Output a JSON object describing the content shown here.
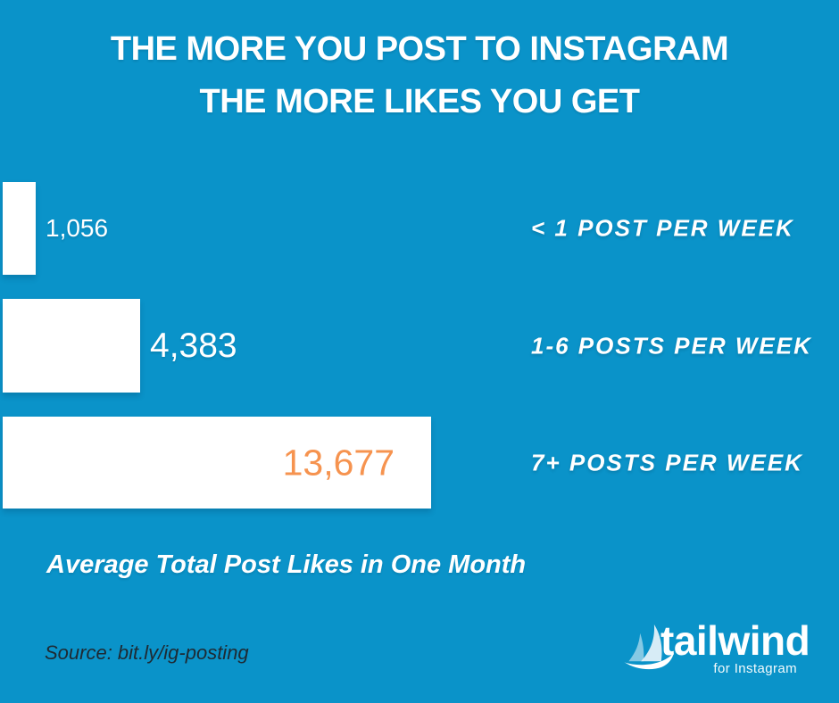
{
  "colors": {
    "background": "#0A93C9",
    "bar": "#FFFFFF",
    "accent_orange": "#F6934F",
    "source_text": "#1E2A33",
    "text": "#FFFFFF"
  },
  "title": {
    "line1": "THE MORE YOU POST TO INSTAGRAM",
    "line2": "THE MORE LIKES YOU GET"
  },
  "chart_data": {
    "type": "bar",
    "orientation": "horizontal",
    "title": "THE MORE YOU POST TO INSTAGRAM THE MORE LIKES YOU GET",
    "categories": [
      "< 1 POST PER WEEK",
      "1-6 POSTS PER WEEK",
      "7+ POSTS PER WEEK"
    ],
    "values": [
      1056,
      4383,
      13677
    ],
    "value_labels": [
      "1,056",
      "4,383",
      "13,677"
    ],
    "xlabel": "Average Total Post Likes in One Month",
    "ylabel": "",
    "xlim": [
      0,
      13677
    ],
    "grid": false,
    "legend": false,
    "bar_color": "#FFFFFF",
    "value_label_colors": [
      "#FFFFFF",
      "#FFFFFF",
      "#F6934F"
    ],
    "highlighted_bar_index": 2
  },
  "caption": "Average Total Post Likes in One Month",
  "source": "Source: bit.ly/ig-posting",
  "logo": {
    "brand": "tailwind",
    "sub": "for Instagram",
    "icon": "sailboat-icon"
  }
}
